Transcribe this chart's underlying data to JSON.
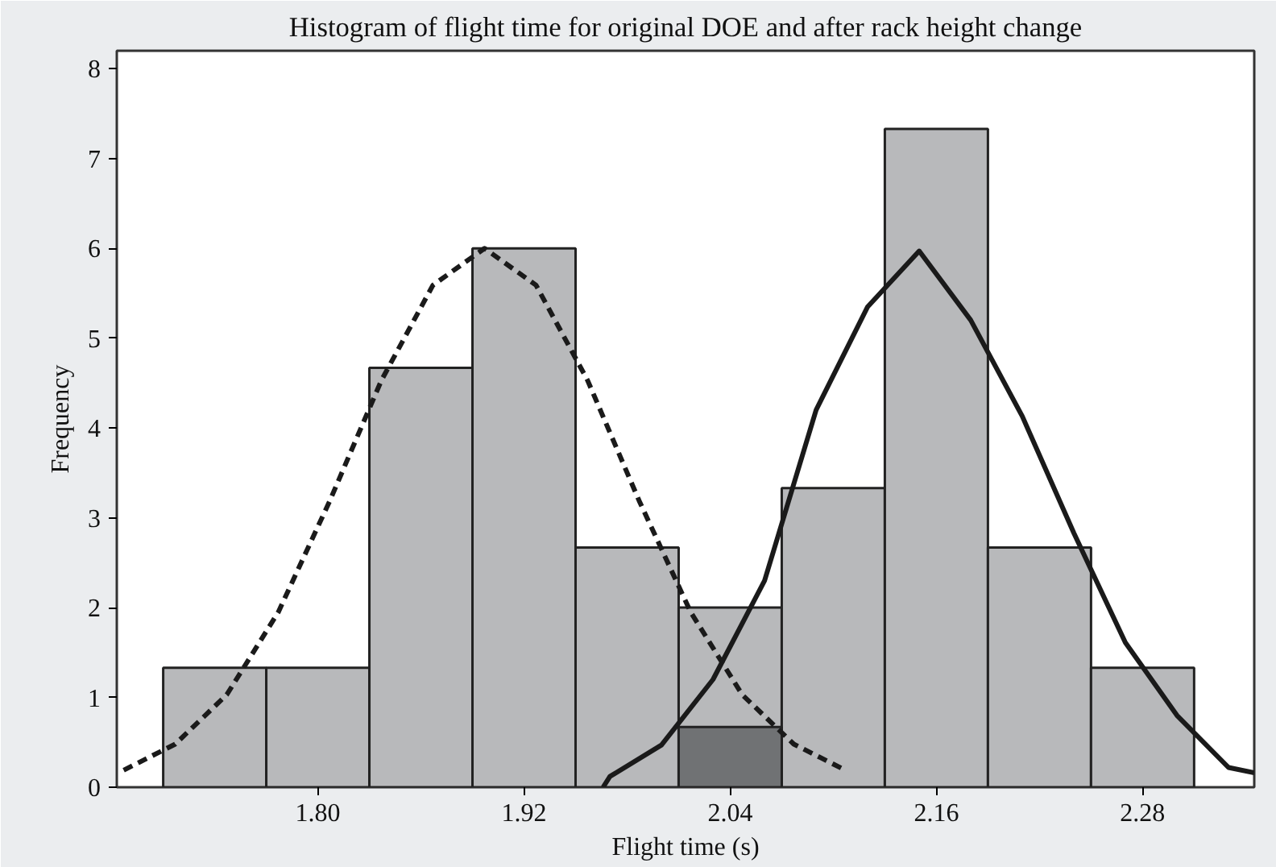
{
  "chart_data": {
    "type": "histogram",
    "title": "Histogram of flight time for original DOE and after rack height change",
    "xlabel": "Flight time (s)",
    "ylabel": "Frequency",
    "bins": [
      1.71,
      1.77,
      1.83,
      1.89,
      1.95,
      2.01,
      2.07,
      2.13,
      2.19,
      2.25,
      2.31
    ],
    "series": [
      {
        "color": "#b8b9bb",
        "values": [
          1.33,
          1.33,
          4.67,
          6,
          2.67,
          2,
          3.33,
          7.33,
          2.67,
          1.33
        ]
      },
      {
        "color": "#707274",
        "values": [
          null,
          null,
          null,
          null,
          null,
          0.67,
          null,
          null,
          null,
          null
        ]
      },
      {
        "type": "line",
        "color": "#1a1a1a",
        "line_style": "dashed",
        "x": [
          1.687,
          1.717,
          1.747,
          1.777,
          1.807,
          1.837,
          1.867,
          1.897,
          1.927,
          1.957,
          1.987,
          2.017,
          2.047,
          2.077,
          2.107
        ],
        "values": [
          0.19,
          0.48,
          1.03,
          1.95,
          3.19,
          4.53,
          5.59,
          6,
          5.59,
          4.53,
          3.19,
          1.95,
          1.03,
          0.48,
          0.19
        ]
      },
      {
        "type": "line",
        "color": "#1a1a1a",
        "line_style": "solid",
        "x": [
          1.966,
          1.97,
          2.0,
          2.03,
          2.06,
          2.09,
          2.12,
          2.15,
          2.18,
          2.21,
          2.24,
          2.27,
          2.3,
          2.33,
          2.345
        ],
        "values": [
          0,
          0.12,
          0.47,
          1.2,
          2.3,
          4.2,
          5.35,
          5.97,
          5.2,
          4.13,
          2.83,
          1.61,
          0.8,
          0.22,
          0.16
        ]
      }
    ],
    "xlim": [
      1.683,
      2.345
    ],
    "ylim": [
      0,
      8.2
    ],
    "xticks": [
      {
        "value": 1.8,
        "label": "1.80"
      },
      {
        "value": 1.92,
        "label": "1.92"
      },
      {
        "value": 2.04,
        "label": "2.04"
      },
      {
        "value": 2.16,
        "label": "2.16"
      },
      {
        "value": 2.28,
        "label": "2.28"
      }
    ],
    "yticks": [
      0,
      1,
      2,
      3,
      4,
      5,
      6,
      7,
      8
    ],
    "grid": false
  }
}
